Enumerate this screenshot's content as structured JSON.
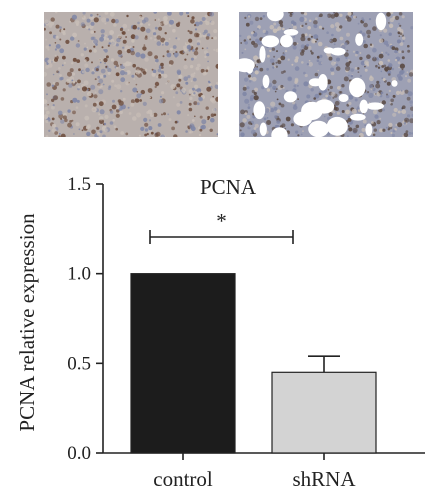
{
  "panels": [
    {
      "name": "control",
      "stain_base": "#b9b0ad",
      "stain_dark": "#6b4a3a"
    },
    {
      "name": "shRNA",
      "stain_base": "#9da0b4",
      "stain_dark": "#5a4a44",
      "vacuoles": true
    }
  ],
  "chart_data": {
    "type": "bar",
    "title": "PCNA",
    "xlabel": "",
    "ylabel": "PCNA relative expression",
    "categories": [
      "control",
      "shRNA"
    ],
    "values": [
      1.0,
      0.45
    ],
    "errors": [
      0,
      0.09
    ],
    "colors": [
      "#1c1c1c",
      "#d3d3d3"
    ],
    "ylim": [
      0,
      1.5
    ],
    "yticks": [
      0.0,
      0.5,
      1.0,
      1.5
    ],
    "ytick_labels": [
      "0.0",
      "0.5",
      "1.0",
      "1.5"
    ],
    "significance": {
      "label": "*",
      "between": [
        "control",
        "shRNA"
      ]
    },
    "grid": false
  }
}
